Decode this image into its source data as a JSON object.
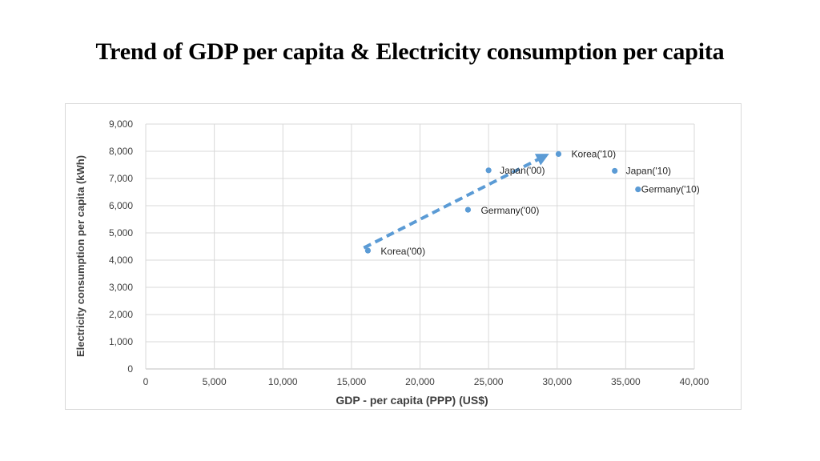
{
  "slide": {
    "title": "Trend of GDP per capita & Electricity consumption per capita"
  },
  "chart_data": {
    "type": "scatter",
    "title": "Trend of GDP per capita & Electricity consumption per capita",
    "xlabel": "GDP - per capita (PPP)  (US$)",
    "ylabel": "Electricity consumption per capita (kWh)",
    "xlim": [
      0,
      40000
    ],
    "ylim": [
      0,
      9000
    ],
    "x_ticks": [
      0,
      5000,
      10000,
      15000,
      20000,
      25000,
      30000,
      35000,
      40000
    ],
    "x_tick_labels": [
      "0",
      "5,000",
      "10,000",
      "15,000",
      "20,000",
      "25,000",
      "30,000",
      "35,000",
      "40,000"
    ],
    "y_ticks": [
      0,
      1000,
      2000,
      3000,
      4000,
      5000,
      6000,
      7000,
      8000,
      9000
    ],
    "y_tick_labels": [
      "0",
      "1,000",
      "2,000",
      "3,000",
      "4,000",
      "5,000",
      "6,000",
      "7,000",
      "8,000",
      "9,000"
    ],
    "grid": true,
    "marker_color": "#5b9bd5",
    "arrow_color": "#5b9bd5",
    "points": [
      {
        "label": "Korea('00)",
        "x": 16200,
        "y": 4350
      },
      {
        "label": "Germany('00)",
        "x": 23500,
        "y": 5850
      },
      {
        "label": "Japan('00)",
        "x": 25000,
        "y": 7300
      },
      {
        "label": "Korea('10)",
        "x": 30100,
        "y": 7900
      },
      {
        "label": "Japan('10)",
        "x": 34200,
        "y": 7280
      },
      {
        "label": "Germany('10)",
        "x": 35900,
        "y": 6600
      }
    ],
    "trend_arrow": {
      "from": {
        "x": 15900,
        "y": 4450
      },
      "to": {
        "x": 29000,
        "y": 7800
      }
    }
  }
}
